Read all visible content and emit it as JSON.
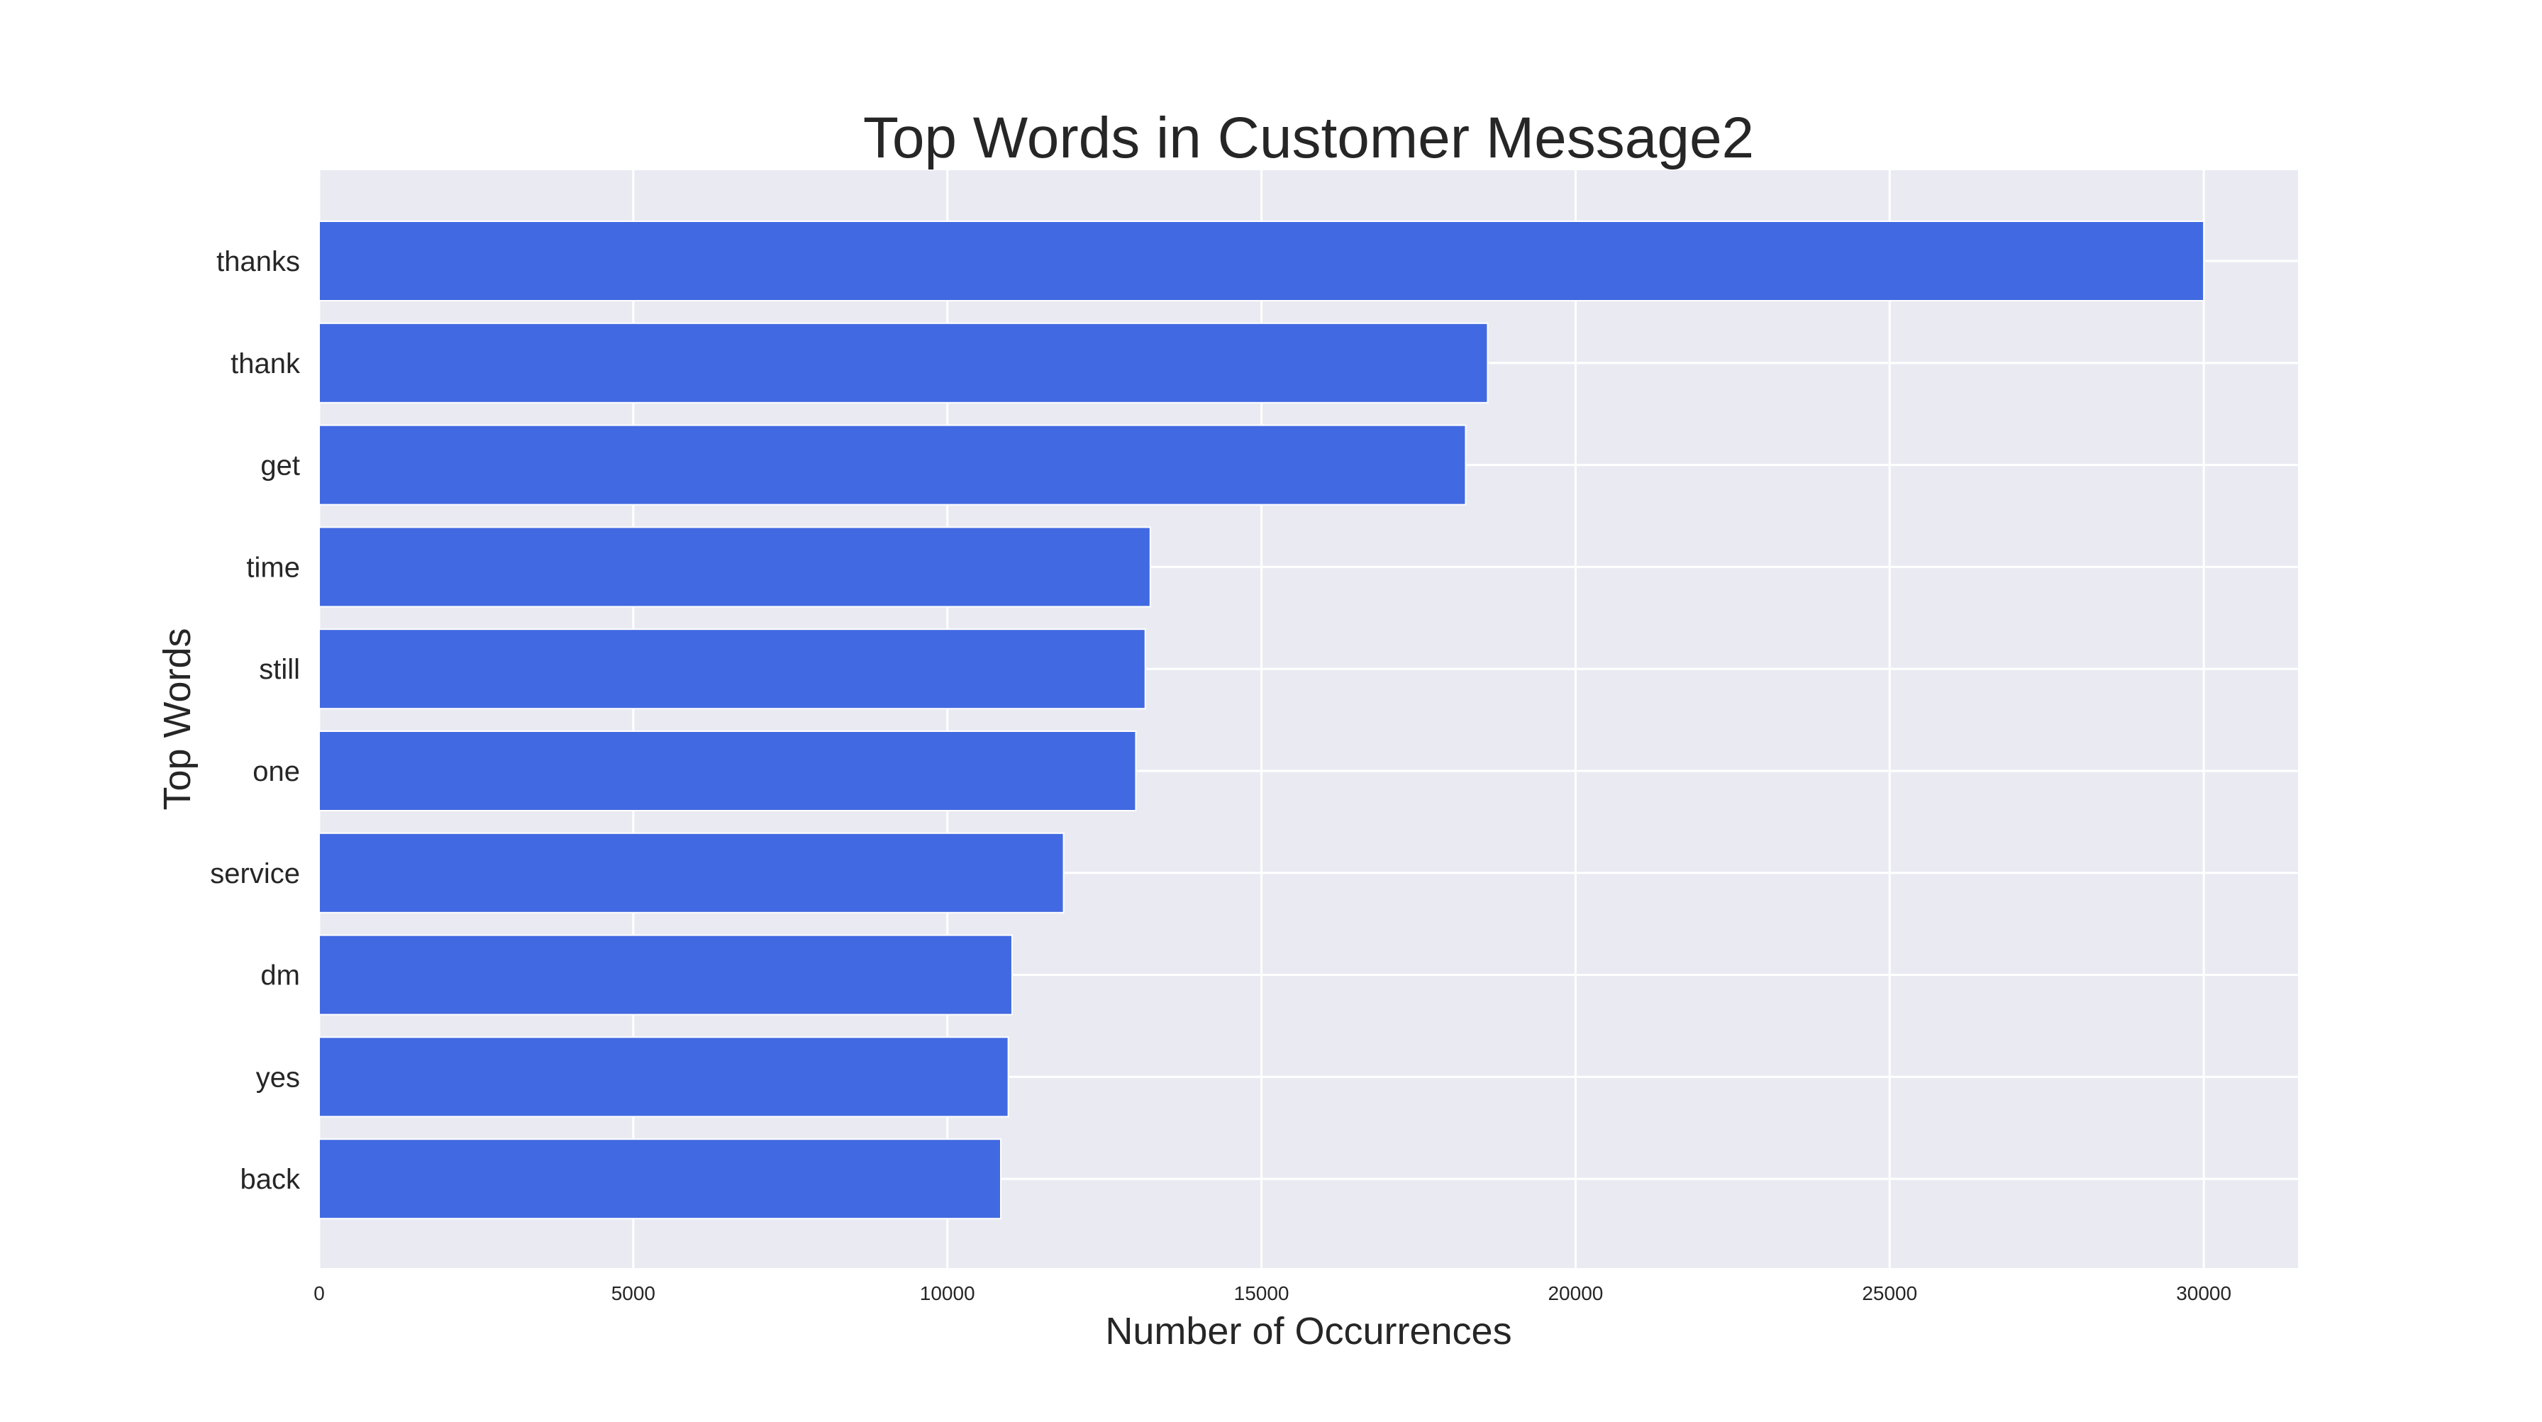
{
  "chart_data": {
    "type": "bar",
    "orientation": "horizontal",
    "title": "Top Words in Customer Message2",
    "xlabel": "Number of Occurrences",
    "ylabel": "Top Words",
    "categories": [
      "thanks",
      "thank",
      "get",
      "time",
      "still",
      "one",
      "service",
      "dm",
      "yes",
      "back"
    ],
    "values": [
      30000,
      18600,
      18250,
      13230,
      13150,
      13000,
      11850,
      11030,
      10970,
      10850
    ],
    "xlim": [
      0,
      31500
    ],
    "xticks": [
      "0",
      "5000",
      "10000",
      "15000",
      "20000",
      "25000",
      "30000"
    ],
    "grid": true,
    "colors": {
      "bar": "#4169E1",
      "plot_background": "#EAEAF2",
      "grid": "#FFFFFF",
      "text": "#262626"
    }
  }
}
